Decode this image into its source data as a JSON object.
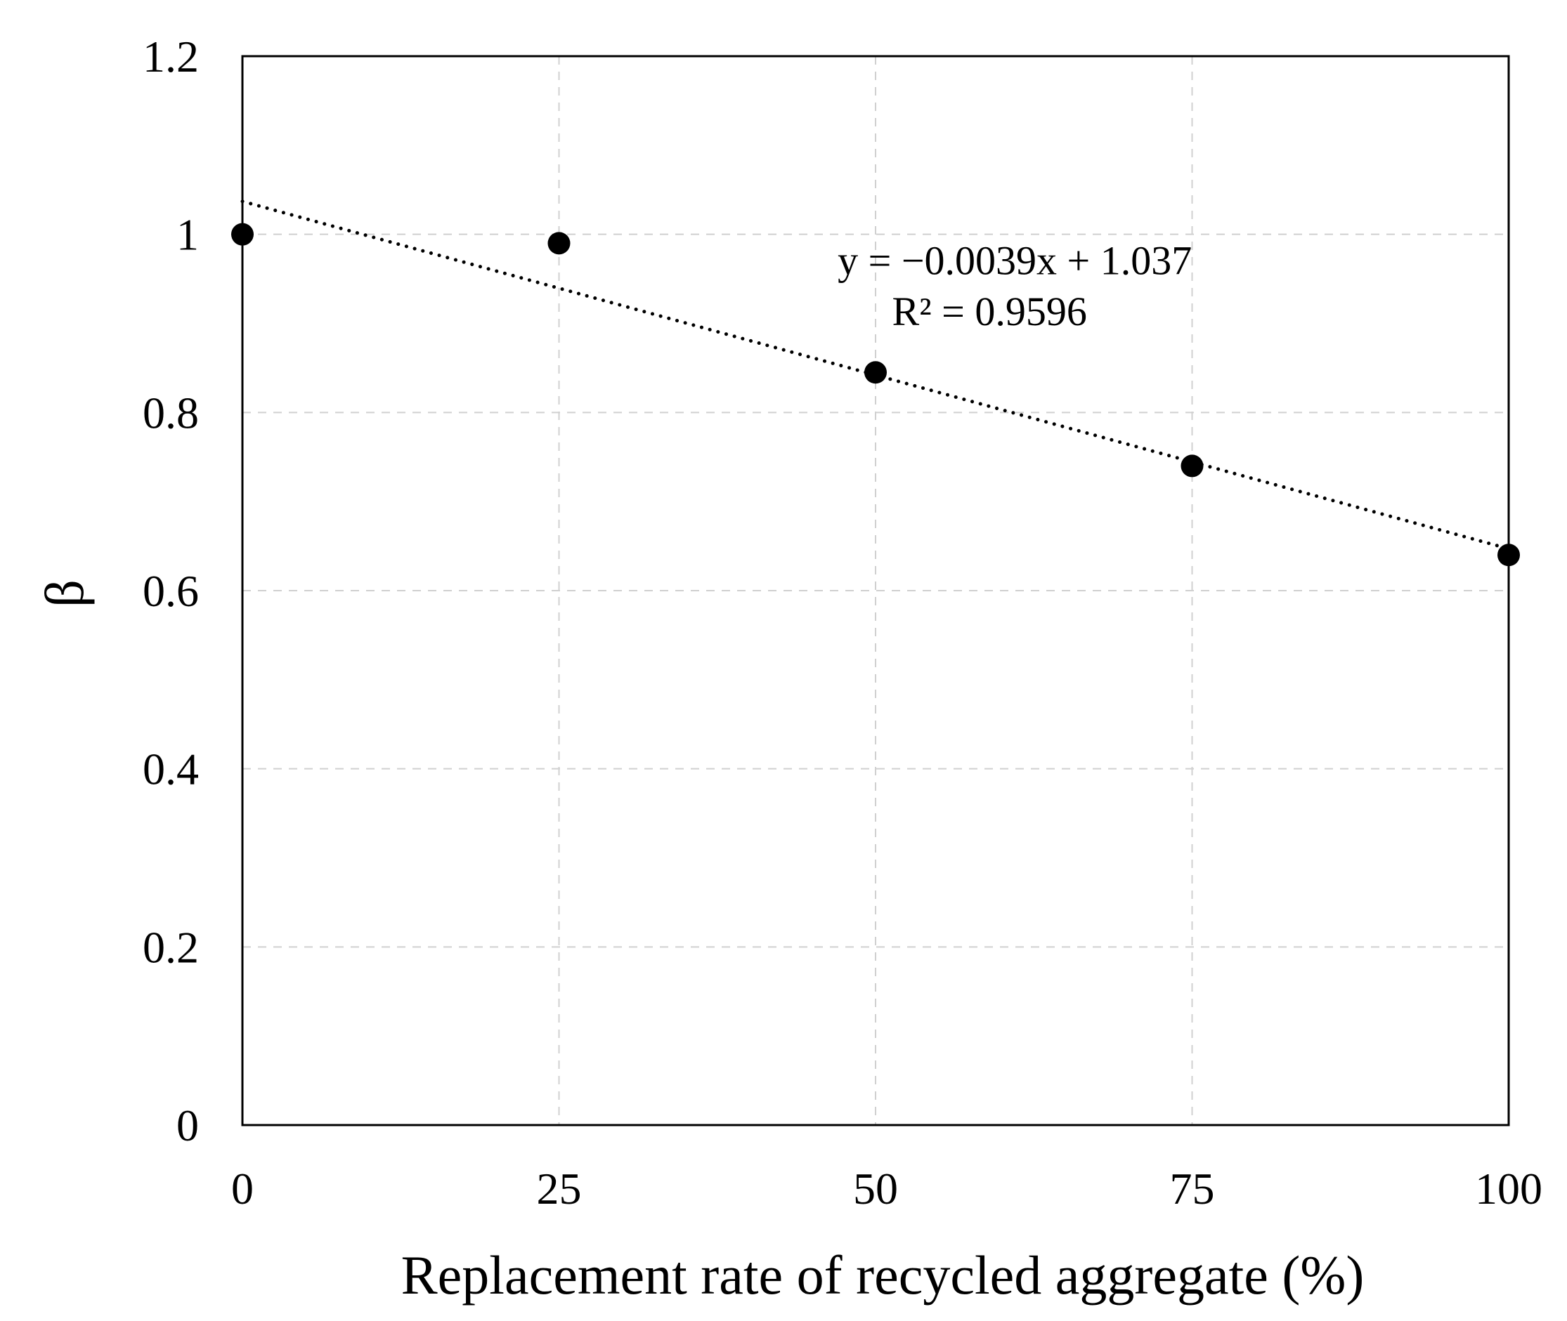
{
  "chart_data": {
    "type": "scatter",
    "title": "",
    "xlabel": "Replacement rate of recycled aggregate (%)",
    "ylabel": "β",
    "xlim": [
      0,
      100
    ],
    "ylim": [
      0,
      1.2
    ],
    "xticks": [
      0,
      25,
      50,
      75,
      100
    ],
    "xtick_labels": [
      "0",
      "25",
      "50",
      "75",
      "100"
    ],
    "yticks": [
      0,
      0.2,
      0.4,
      0.6,
      0.8,
      1.0,
      1.2
    ],
    "ytick_labels": [
      "0",
      "0.2",
      "0.4",
      "0.6",
      "0.8",
      "1",
      "1.2"
    ],
    "grid": true,
    "series": [
      {
        "name": "β",
        "x": [
          0,
          25,
          50,
          75,
          100
        ],
        "y": [
          1.0,
          0.99,
          0.845,
          0.74,
          0.64
        ],
        "color": "#000000"
      }
    ],
    "trendline": {
      "slope": -0.0039,
      "intercept": 1.037,
      "x_range": [
        0,
        100
      ],
      "style": "dotted",
      "color": "#000000"
    },
    "annotations": {
      "equation": "y = −0.0039x + 1.037",
      "r_squared": "R² = 0.9596"
    }
  }
}
